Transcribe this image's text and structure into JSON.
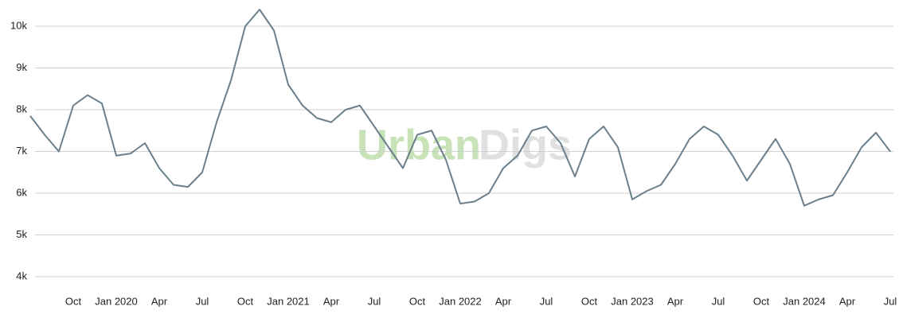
{
  "chart_data": {
    "type": "line",
    "watermark": [
      "Urban",
      "Digs"
    ],
    "x": [
      "2019-07",
      "2019-08",
      "2019-09",
      "2019-10",
      "2019-11",
      "2019-12",
      "2020-01",
      "2020-02",
      "2020-03",
      "2020-04",
      "2020-05",
      "2020-06",
      "2020-07",
      "2020-08",
      "2020-09",
      "2020-10",
      "2020-11",
      "2020-12",
      "2021-01",
      "2021-02",
      "2021-03",
      "2021-04",
      "2021-05",
      "2021-06",
      "2021-07",
      "2021-08",
      "2021-09",
      "2021-10",
      "2021-11",
      "2021-12",
      "2022-01",
      "2022-02",
      "2022-03",
      "2022-04",
      "2022-05",
      "2022-06",
      "2022-07",
      "2022-08",
      "2022-09",
      "2022-10",
      "2022-11",
      "2022-12",
      "2023-01",
      "2023-02",
      "2023-03",
      "2023-04",
      "2023-05",
      "2023-06",
      "2023-07",
      "2023-08",
      "2023-09",
      "2023-10",
      "2023-11",
      "2023-12",
      "2024-01",
      "2024-02",
      "2024-03",
      "2024-04",
      "2024-05",
      "2024-06",
      "2024-07"
    ],
    "series": [
      {
        "color": "#6b7f8c",
        "values": [
          7850,
          7400,
          7000,
          8100,
          8350,
          8150,
          6900,
          6950,
          7200,
          6600,
          6200,
          6150,
          6500,
          7700,
          8700,
          10000,
          10400,
          9900,
          8600,
          8100,
          7800,
          7700,
          8000,
          8100,
          7600,
          7100,
          6600,
          7400,
          7500,
          6800,
          5750,
          5800,
          6000,
          6600,
          6900,
          7500,
          7600,
          7200,
          6400,
          7300,
          7600,
          7100,
          5850,
          6050,
          6200,
          6700,
          7300,
          7600,
          7400,
          6900,
          6300,
          6800,
          7300,
          6700,
          5700,
          5850,
          5950,
          6500,
          7100,
          7450,
          7000
        ]
      }
    ],
    "xticks": [
      {
        "value": "2019-10",
        "label": "Oct"
      },
      {
        "value": "2020-01",
        "label": "Jan 2020"
      },
      {
        "value": "2020-04",
        "label": "Apr"
      },
      {
        "value": "2020-07",
        "label": "Jul"
      },
      {
        "value": "2020-10",
        "label": "Oct"
      },
      {
        "value": "2021-01",
        "label": "Jan 2021"
      },
      {
        "value": "2021-04",
        "label": "Apr"
      },
      {
        "value": "2021-07",
        "label": "Jul"
      },
      {
        "value": "2021-10",
        "label": "Oct"
      },
      {
        "value": "2022-01",
        "label": "Jan 2022"
      },
      {
        "value": "2022-04",
        "label": "Apr"
      },
      {
        "value": "2022-07",
        "label": "Jul"
      },
      {
        "value": "2022-10",
        "label": "Oct"
      },
      {
        "value": "2023-01",
        "label": "Jan 2023"
      },
      {
        "value": "2023-04",
        "label": "Apr"
      },
      {
        "value": "2023-07",
        "label": "Jul"
      },
      {
        "value": "2023-10",
        "label": "Oct"
      },
      {
        "value": "2024-01",
        "label": "Jan 2024"
      },
      {
        "value": "2024-04",
        "label": "Apr"
      },
      {
        "value": "2024-07",
        "label": "Jul"
      }
    ],
    "ylim": [
      3600,
      10500
    ],
    "yticks": [
      {
        "value": 4000,
        "label": "4k"
      },
      {
        "value": 5000,
        "label": "5k"
      },
      {
        "value": 6000,
        "label": "6k"
      },
      {
        "value": 7000,
        "label": "7k"
      },
      {
        "value": 8000,
        "label": "8k"
      },
      {
        "value": 9000,
        "label": "9k"
      },
      {
        "value": 10000,
        "label": "10k"
      }
    ],
    "grid": true
  }
}
